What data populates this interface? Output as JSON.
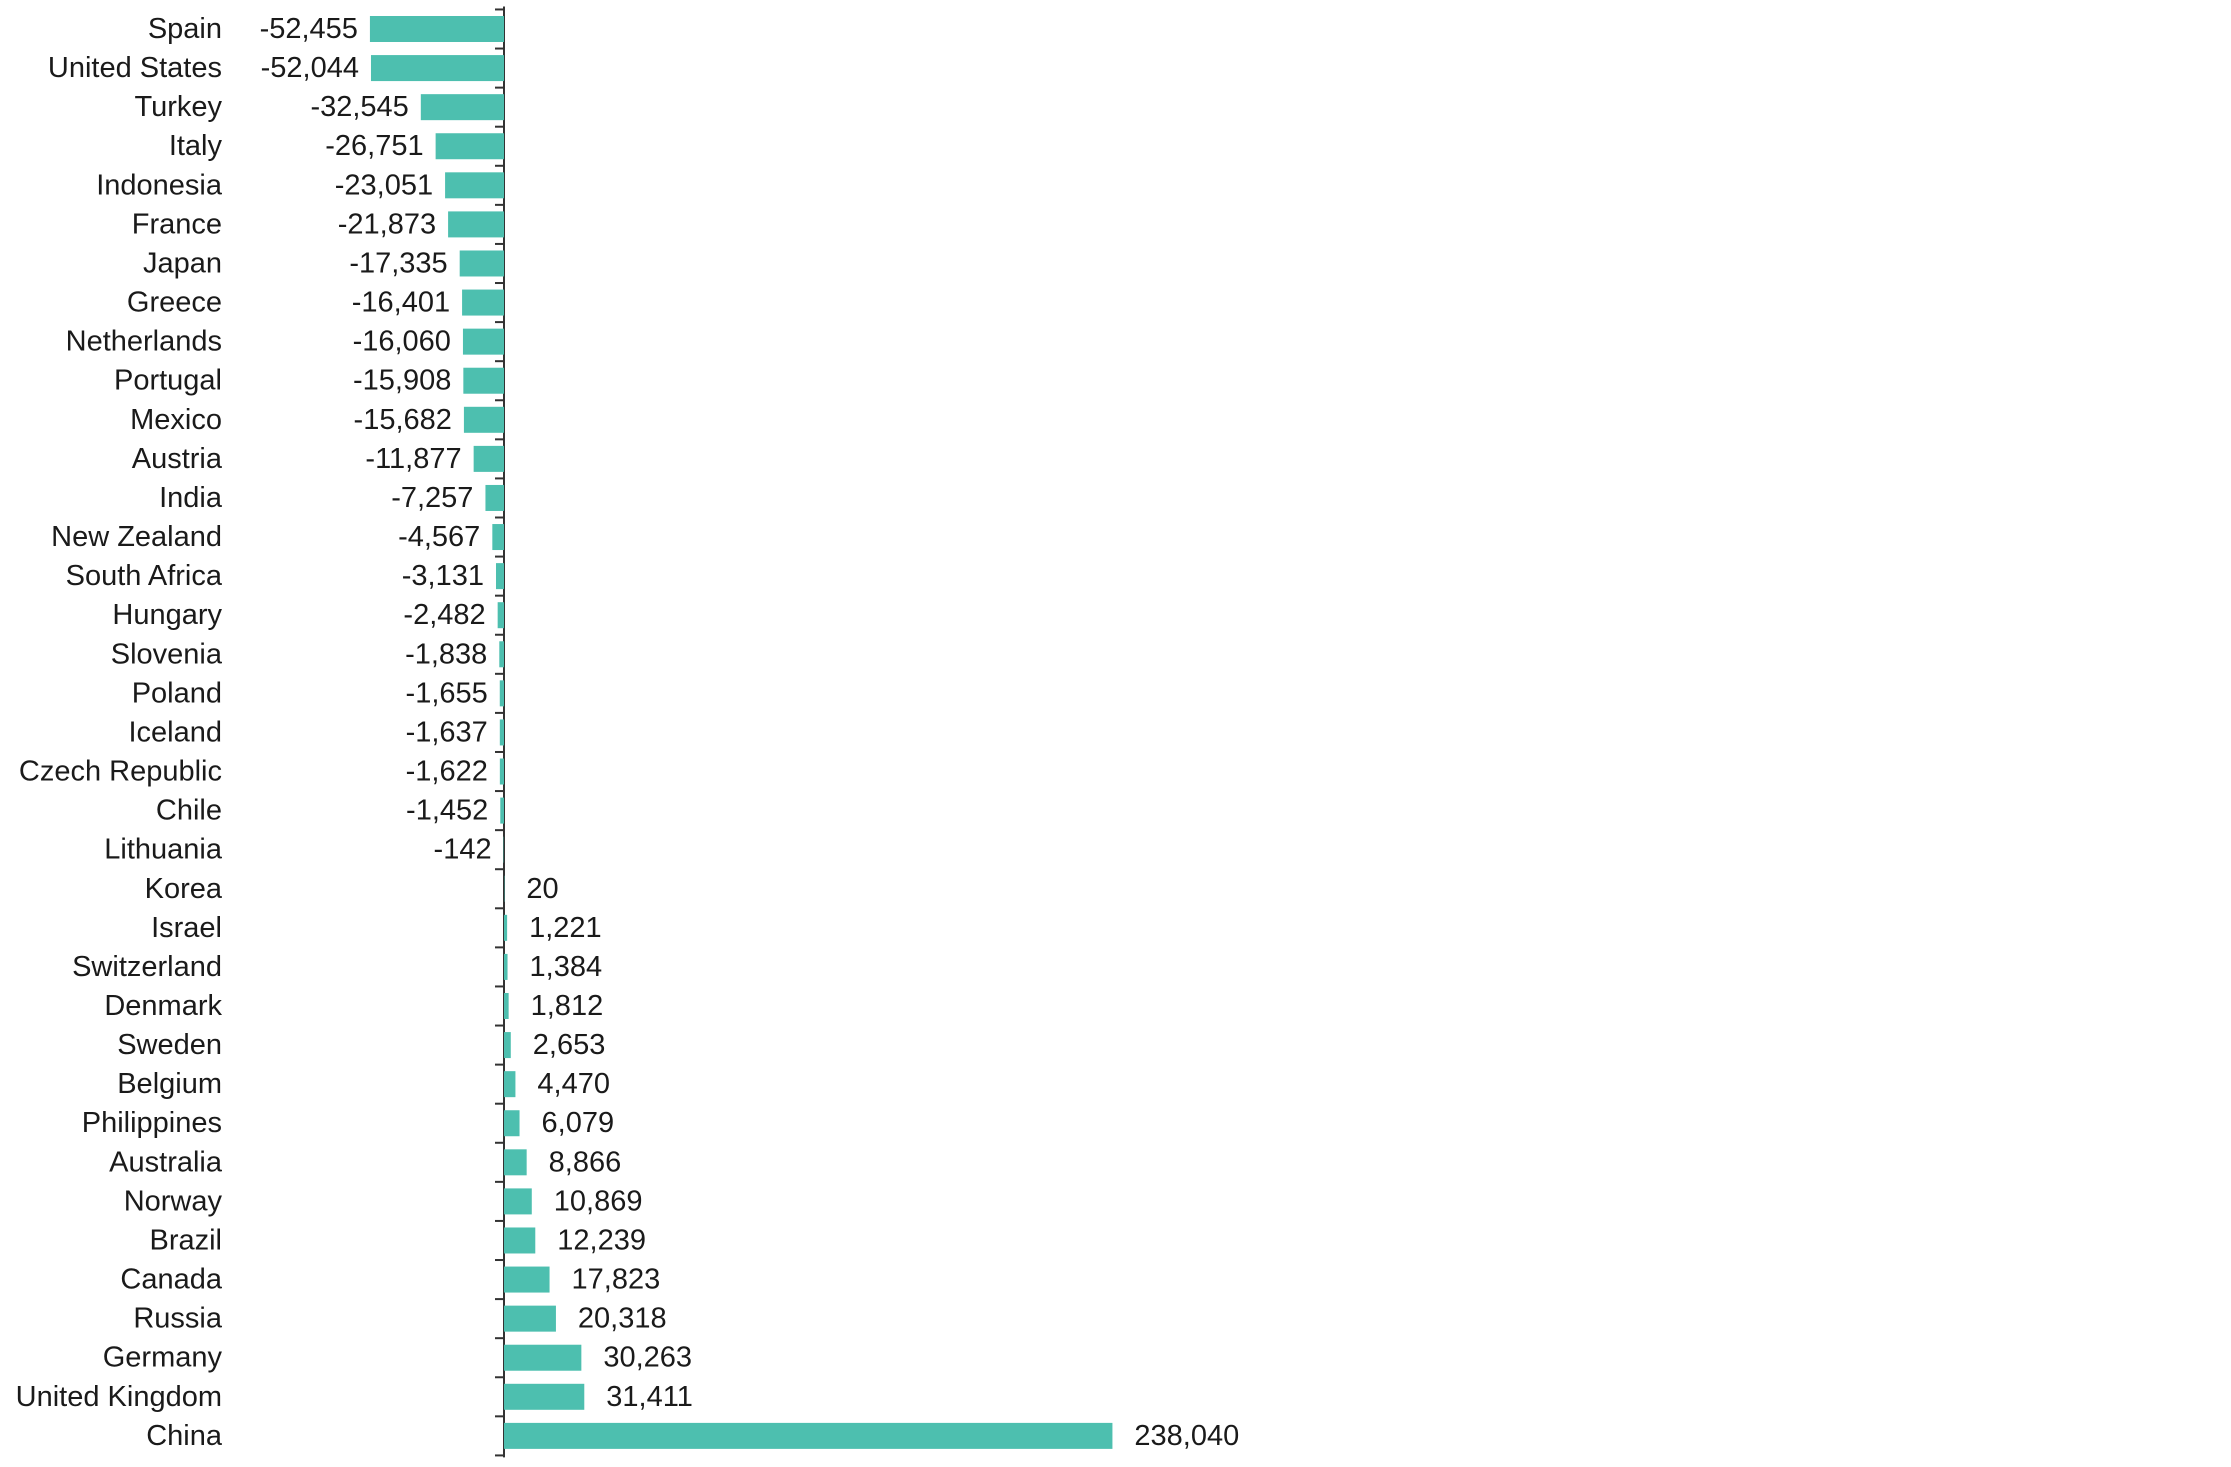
{
  "chart_data": {
    "type": "bar",
    "orientation": "horizontal",
    "bar_color": "#4DBFAF",
    "axis_color": "#333333",
    "text_color": "#1a1a1a",
    "title": "",
    "xlabel": "",
    "ylabel": "",
    "grid": false,
    "legend": "none",
    "xlim": [
      -52455,
      238040
    ],
    "categories": [
      "Spain",
      "United States",
      "Turkey",
      "Italy",
      "Indonesia",
      "France",
      "Japan",
      "Greece",
      "Netherlands",
      "Portugal",
      "Mexico",
      "Austria",
      "India",
      "New Zealand",
      "South Africa",
      "Hungary",
      "Slovenia",
      "Poland",
      "Iceland",
      "Czech Republic",
      "Chile",
      "Lithuania",
      "Korea",
      "Israel",
      "Switzerland",
      "Denmark",
      "Sweden",
      "Belgium",
      "Philippines",
      "Australia",
      "Norway",
      "Brazil",
      "Canada",
      "Russia",
      "Germany",
      "United Kingdom",
      "China"
    ],
    "values": [
      -52455,
      -52044,
      -32545,
      -26751,
      -23051,
      -21873,
      -17335,
      -16401,
      -16060,
      -15908,
      -15682,
      -11877,
      -7257,
      -4567,
      -3131,
      -2482,
      -1838,
      -1655,
      -1637,
      -1622,
      -1452,
      -142,
      20,
      1221,
      1384,
      1812,
      2653,
      4470,
      6079,
      8866,
      10869,
      12239,
      17823,
      20318,
      30263,
      31411,
      238040
    ],
    "value_labels": [
      "-52,455",
      "-52,044",
      "-32,545",
      "-26,751",
      "-23,051",
      "-21,873",
      "-17,335",
      "-16,401",
      "-16,060",
      "-15,908",
      "-15,682",
      "-11,877",
      "-7,257",
      "-4,567",
      "-3,131",
      "-2,482",
      "-1,838",
      "-1,655",
      "-1,637",
      "-1,622",
      "-1,452",
      "-142",
      "20",
      "1,221",
      "1,384",
      "1,812",
      "2,653",
      "4,470",
      "6,079",
      "8,866",
      "10,869",
      "12,239",
      "17,823",
      "20,318",
      "30,263",
      "31,411",
      "238,040"
    ]
  }
}
